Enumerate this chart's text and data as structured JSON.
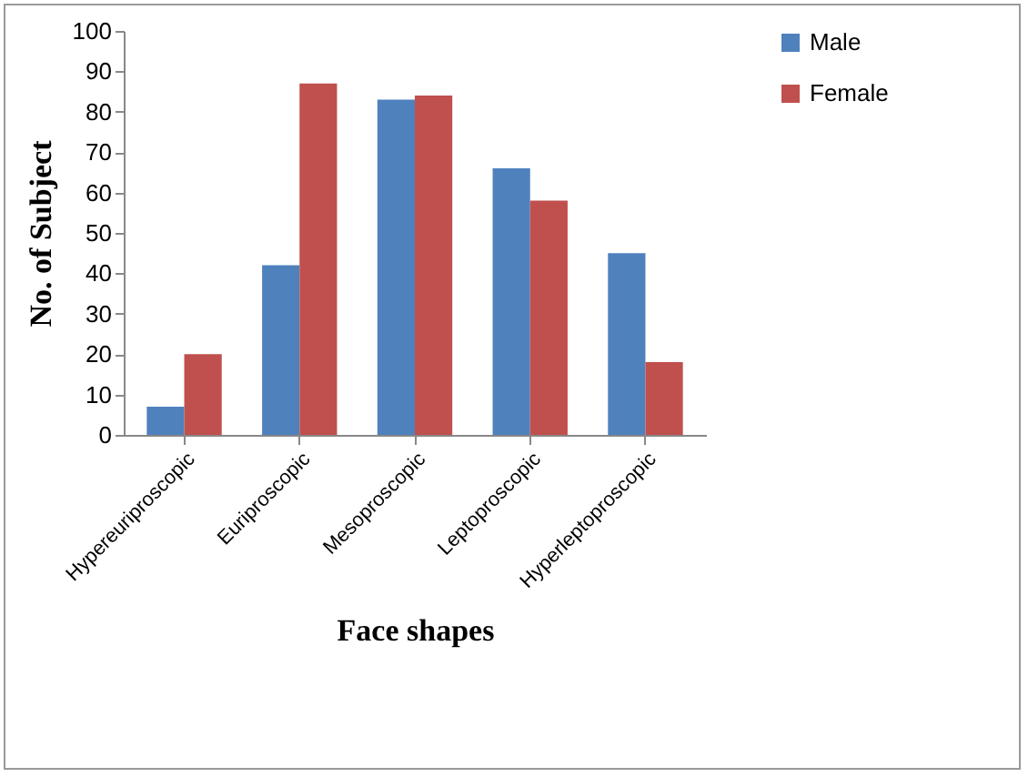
{
  "chart_data": {
    "type": "bar",
    "xlabel": "Face shapes",
    "ylabel": "No. of Subject",
    "categories": [
      "Hypereuriproscopic",
      "Euriproscopic",
      "Mesoproscopic",
      "Leptoproscopic",
      "Hyperleptoproscopic"
    ],
    "series": [
      {
        "name": "Male",
        "color": "#4f81bd",
        "values": [
          7,
          42,
          83,
          66,
          45
        ]
      },
      {
        "name": "Female",
        "color": "#c0504d",
        "values": [
          20,
          87,
          84,
          58,
          18
        ]
      }
    ],
    "ylim": [
      0,
      100
    ],
    "yticks": [
      0,
      10,
      20,
      30,
      40,
      50,
      60,
      70,
      80,
      90,
      100
    ],
    "grid": false,
    "legend": "right"
  }
}
